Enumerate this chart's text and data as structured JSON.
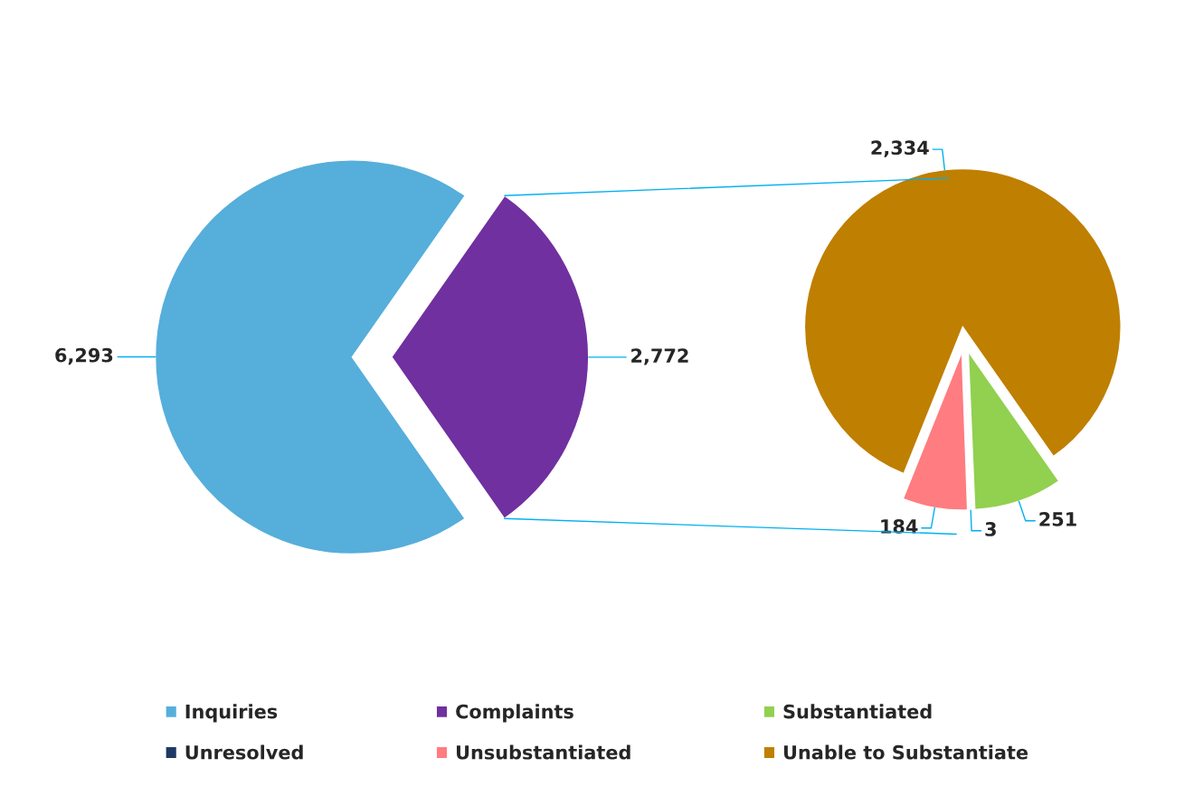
{
  "chart_data": [
    {
      "type": "pie",
      "categories": [
        "Inquiries",
        "Complaints"
      ],
      "values": [
        6293,
        2772
      ],
      "colors": [
        "#56aedb",
        "#7030a0"
      ],
      "value_labels": [
        "6,293",
        "2,772"
      ],
      "legend": "bottom"
    },
    {
      "type": "pie",
      "categories": [
        "Substantiated",
        "Unresolved",
        "Unsubstantiated",
        "Unable to Substantiate"
      ],
      "values": [
        251,
        3,
        184,
        2334
      ],
      "colors": [
        "#92d050",
        "#1f3864",
        "#ff7c80",
        "#bf7f00"
      ],
      "value_labels": [
        "251",
        "3",
        "184",
        "2,334"
      ],
      "legend": "bottom"
    }
  ]
}
